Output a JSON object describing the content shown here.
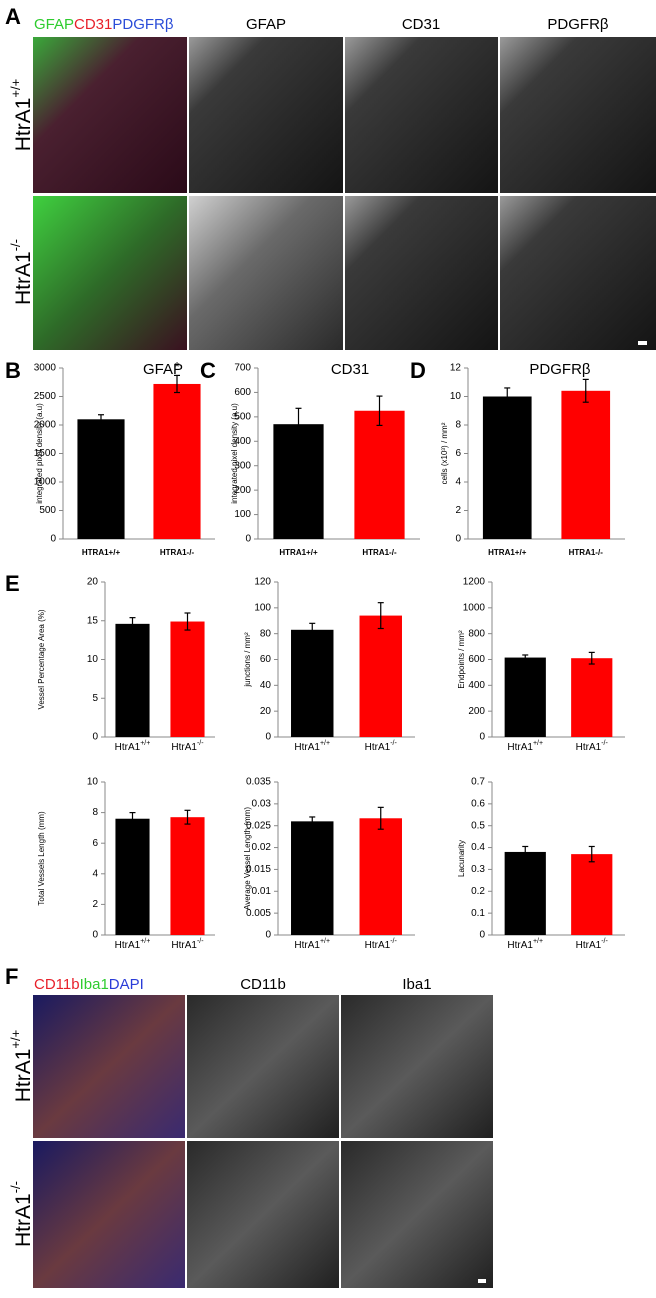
{
  "panel_letters": [
    "A",
    "B",
    "C",
    "D",
    "E",
    "F"
  ],
  "panel_A": {
    "merge_label": [
      {
        "text": "GFAP",
        "color": "#2ecc2e"
      },
      {
        "text": "CD31",
        "color": "#e8202a"
      },
      {
        "text": "PDGFRβ",
        "color": "#2a4cd8"
      }
    ],
    "channel_titles": [
      "GFAP",
      "CD31",
      "PDGFRβ"
    ],
    "row_labels": [
      {
        "base": "HtrA1",
        "sup": "+/+"
      },
      {
        "base": "HtrA1",
        "sup": "-/-"
      }
    ]
  },
  "panel_F": {
    "merge_label": [
      {
        "text": "CD11b",
        "color": "#e8202a"
      },
      {
        "text": "Iba1",
        "color": "#2ecc2e"
      },
      {
        "text": "DAPI",
        "color": "#2a3cd8"
      }
    ],
    "channel_titles": [
      "CD11b",
      "Iba1"
    ],
    "row_labels": [
      {
        "base": "HtrA1",
        "sup": "+/+"
      },
      {
        "base": "HtrA1",
        "sup": "-/-"
      }
    ]
  },
  "chart_data": [
    {
      "type": "bar",
      "title": "GFAP",
      "ylabel": "integrated pixel density (a.u)",
      "categories": [
        "HTRA1+/+",
        "HTRA1-/-"
      ],
      "values": [
        2100,
        2720
      ],
      "errors": [
        80,
        150
      ],
      "colors": [
        "#000000",
        "#ff0000"
      ],
      "ylim": [
        0,
        3000
      ],
      "yticks": [
        0,
        500,
        1000,
        1500,
        2000,
        2500,
        3000
      ],
      "annotation": "*"
    },
    {
      "type": "bar",
      "title": "CD31",
      "ylabel": "integrated pixel density (a.u)",
      "categories": [
        "HTRA1+/+",
        "HTRA1-/-"
      ],
      "values": [
        470,
        525
      ],
      "errors": [
        65,
        60
      ],
      "colors": [
        "#000000",
        "#ff0000"
      ],
      "ylim": [
        0,
        700
      ],
      "yticks": [
        0,
        100,
        200,
        300,
        400,
        500,
        600,
        700
      ]
    },
    {
      "type": "bar",
      "title": "PDGFRβ",
      "ylabel": "cells (x10³) / mm²",
      "categories": [
        "HTRA1+/+",
        "HTRA1-/-"
      ],
      "values": [
        10.0,
        10.4
      ],
      "errors": [
        0.6,
        0.8
      ],
      "colors": [
        "#000000",
        "#ff0000"
      ],
      "ylim": [
        0,
        12
      ],
      "yticks": [
        0,
        2,
        4,
        6,
        8,
        10,
        12
      ]
    },
    {
      "type": "bar",
      "ylabel": "Vessel Percentage Area (%)",
      "categories": [
        {
          "base": "HtrA1",
          "sup": "+/+"
        },
        {
          "base": "HtrA1",
          "sup": "-/-"
        }
      ],
      "values": [
        14.6,
        14.9
      ],
      "errors": [
        0.8,
        1.1
      ],
      "colors": [
        "#000000",
        "#ff0000"
      ],
      "ylim": [
        0,
        20
      ],
      "yticks": [
        0,
        5,
        10,
        15,
        20
      ]
    },
    {
      "type": "bar",
      "ylabel": "junctions / mm²",
      "categories": [
        {
          "base": "HtrA1",
          "sup": "+/+"
        },
        {
          "base": "HtrA1",
          "sup": "-/-"
        }
      ],
      "values": [
        83,
        94
      ],
      "errors": [
        5,
        10
      ],
      "colors": [
        "#000000",
        "#ff0000"
      ],
      "ylim": [
        0,
        120
      ],
      "yticks": [
        0,
        20,
        40,
        60,
        80,
        100,
        120
      ]
    },
    {
      "type": "bar",
      "ylabel": "Endpoints / mm²",
      "categories": [
        {
          "base": "HtrA1",
          "sup": "+/+"
        },
        {
          "base": "HtrA1",
          "sup": "-/-"
        }
      ],
      "values": [
        615,
        610
      ],
      "errors": [
        20,
        45
      ],
      "colors": [
        "#000000",
        "#ff0000"
      ],
      "ylim": [
        0,
        1200
      ],
      "yticks": [
        0,
        200,
        400,
        600,
        800,
        1000,
        1200
      ]
    },
    {
      "type": "bar",
      "ylabel": "Total Vessels Length (mm)",
      "categories": [
        {
          "base": "HtrA1",
          "sup": "+/+"
        },
        {
          "base": "HtrA1",
          "sup": "-/-"
        }
      ],
      "values": [
        7.6,
        7.7
      ],
      "errors": [
        0.4,
        0.45
      ],
      "colors": [
        "#000000",
        "#ff0000"
      ],
      "ylim": [
        0,
        10
      ],
      "yticks": [
        0,
        2,
        4,
        6,
        8,
        10
      ]
    },
    {
      "type": "bar",
      "ylabel": "Average Vessel Length (mm)",
      "categories": [
        {
          "base": "HtrA1",
          "sup": "+/+"
        },
        {
          "base": "HtrA1",
          "sup": "-/-"
        }
      ],
      "values": [
        0.026,
        0.0267
      ],
      "errors": [
        0.001,
        0.0025
      ],
      "colors": [
        "#000000",
        "#ff0000"
      ],
      "ylim": [
        0,
        0.035
      ],
      "yticks": [
        0,
        0.005,
        0.01,
        0.015,
        0.02,
        0.025,
        0.03,
        0.035
      ]
    },
    {
      "type": "bar",
      "ylabel": "Lacunarity",
      "categories": [
        {
          "base": "HtrA1",
          "sup": "+/+"
        },
        {
          "base": "HtrA1",
          "sup": "-/-"
        }
      ],
      "values": [
        0.38,
        0.37
      ],
      "errors": [
        0.025,
        0.035
      ],
      "colors": [
        "#000000",
        "#ff0000"
      ],
      "ylim": [
        0,
        0.7
      ],
      "yticks": [
        0,
        0.1,
        0.2,
        0.3,
        0.4,
        0.5,
        0.6,
        0.7
      ]
    }
  ]
}
